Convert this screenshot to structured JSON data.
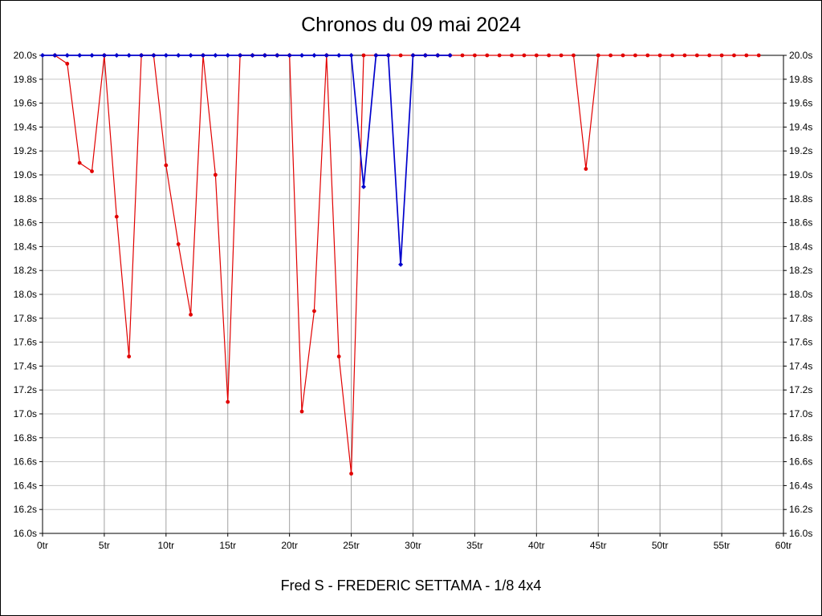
{
  "chart_data": {
    "type": "line",
    "title": "Chronos du 09 mai 2024",
    "footer": "Fred S - FREDERIC SETTAMA - 1/8 4x4",
    "xlim": [
      0,
      60
    ],
    "ylim": [
      16.0,
      20.0
    ],
    "grid": true,
    "grid_color_v": "#a0a0a0",
    "grid_color_h": "#c8c8c8",
    "x_ticks": [
      {
        "v": 0,
        "label": "0tr"
      },
      {
        "v": 5,
        "label": "5tr"
      },
      {
        "v": 10,
        "label": "10tr"
      },
      {
        "v": 15,
        "label": "15tr"
      },
      {
        "v": 20,
        "label": "20tr"
      },
      {
        "v": 25,
        "label": "25tr"
      },
      {
        "v": 30,
        "label": "30tr"
      },
      {
        "v": 35,
        "label": "35tr"
      },
      {
        "v": 40,
        "label": "40tr"
      },
      {
        "v": 45,
        "label": "45tr"
      },
      {
        "v": 50,
        "label": "50tr"
      },
      {
        "v": 55,
        "label": "55tr"
      },
      {
        "v": 60,
        "label": "60tr"
      }
    ],
    "y_ticks": [
      {
        "v": 20.0,
        "label": "20.0s"
      },
      {
        "v": 19.8,
        "label": "19.8s"
      },
      {
        "v": 19.6,
        "label": "19.6s"
      },
      {
        "v": 19.4,
        "label": "19.4s"
      },
      {
        "v": 19.2,
        "label": "19.2s"
      },
      {
        "v": 19.0,
        "label": "19.0s"
      },
      {
        "v": 18.8,
        "label": "18.8s"
      },
      {
        "v": 18.6,
        "label": "18.6s"
      },
      {
        "v": 18.4,
        "label": "18.4s"
      },
      {
        "v": 18.2,
        "label": "18.2s"
      },
      {
        "v": 18.0,
        "label": "18.0s"
      },
      {
        "v": 17.8,
        "label": "17.8s"
      },
      {
        "v": 17.6,
        "label": "17.6s"
      },
      {
        "v": 17.4,
        "label": "17.4s"
      },
      {
        "v": 17.2,
        "label": "17.2s"
      },
      {
        "v": 17.0,
        "label": "17.0s"
      },
      {
        "v": 16.8,
        "label": "16.8s"
      },
      {
        "v": 16.6,
        "label": "16.6s"
      },
      {
        "v": 16.4,
        "label": "16.4s"
      },
      {
        "v": 16.2,
        "label": "16.2s"
      },
      {
        "v": 16.0,
        "label": "16.0s"
      }
    ],
    "series": [
      {
        "name": "lap-times-red",
        "color": "#e10000",
        "width": 1.2,
        "marker": "circle",
        "points": [
          [
            1,
            20.0
          ],
          [
            2,
            19.93
          ],
          [
            3,
            19.1
          ],
          [
            4,
            19.03
          ],
          [
            5,
            20.0
          ],
          [
            6,
            18.65
          ],
          [
            7,
            17.48
          ],
          [
            8,
            20.0
          ],
          [
            9,
            20.0
          ],
          [
            10,
            19.08
          ],
          [
            11,
            18.42
          ],
          [
            12,
            17.83
          ],
          [
            13,
            20.0
          ],
          [
            14,
            19.0
          ],
          [
            15,
            17.1
          ],
          [
            16,
            20.0
          ],
          [
            17,
            20.0
          ],
          [
            18,
            20.0
          ],
          [
            19,
            20.0
          ],
          [
            20,
            20.0
          ],
          [
            21,
            17.02
          ],
          [
            22,
            17.86
          ],
          [
            23,
            20.0
          ],
          [
            24,
            17.48
          ],
          [
            25,
            16.5
          ],
          [
            26,
            20.0
          ],
          [
            27,
            20.0
          ],
          [
            28,
            20.0
          ],
          [
            29,
            20.0
          ],
          [
            30,
            20.0
          ],
          [
            31,
            20.0
          ],
          [
            32,
            20.0
          ],
          [
            33,
            20.0
          ],
          [
            34,
            20.0
          ],
          [
            35,
            20.0
          ],
          [
            36,
            20.0
          ],
          [
            37,
            20.0
          ],
          [
            38,
            20.0
          ],
          [
            39,
            20.0
          ],
          [
            40,
            20.0
          ],
          [
            41,
            20.0
          ],
          [
            42,
            20.0
          ],
          [
            43,
            20.0
          ],
          [
            44,
            19.05
          ],
          [
            45,
            20.0
          ],
          [
            46,
            20.0
          ],
          [
            47,
            20.0
          ],
          [
            48,
            20.0
          ],
          [
            49,
            20.0
          ],
          [
            50,
            20.0
          ],
          [
            51,
            20.0
          ],
          [
            52,
            20.0
          ],
          [
            53,
            20.0
          ],
          [
            54,
            20.0
          ],
          [
            55,
            20.0
          ],
          [
            56,
            20.0
          ],
          [
            57,
            20.0
          ],
          [
            58,
            20.0
          ]
        ]
      },
      {
        "name": "lap-times-blue",
        "color": "#0000cc",
        "width": 1.7,
        "marker": "diamond",
        "points": [
          [
            0,
            20.0
          ],
          [
            1,
            20.0
          ],
          [
            2,
            20.0
          ],
          [
            3,
            20.0
          ],
          [
            4,
            20.0
          ],
          [
            5,
            20.0
          ],
          [
            6,
            20.0
          ],
          [
            7,
            20.0
          ],
          [
            8,
            20.0
          ],
          [
            9,
            20.0
          ],
          [
            10,
            20.0
          ],
          [
            11,
            20.0
          ],
          [
            12,
            20.0
          ],
          [
            13,
            20.0
          ],
          [
            14,
            20.0
          ],
          [
            15,
            20.0
          ],
          [
            16,
            20.0
          ],
          [
            17,
            20.0
          ],
          [
            18,
            20.0
          ],
          [
            19,
            20.0
          ],
          [
            20,
            20.0
          ],
          [
            21,
            20.0
          ],
          [
            22,
            20.0
          ],
          [
            23,
            20.0
          ],
          [
            24,
            20.0
          ],
          [
            25,
            20.0
          ],
          [
            26,
            18.9
          ],
          [
            27,
            20.0
          ],
          [
            28,
            20.0
          ],
          [
            29,
            18.25
          ],
          [
            30,
            20.0
          ],
          [
            31,
            20.0
          ],
          [
            32,
            20.0
          ],
          [
            33,
            20.0
          ]
        ]
      }
    ]
  }
}
